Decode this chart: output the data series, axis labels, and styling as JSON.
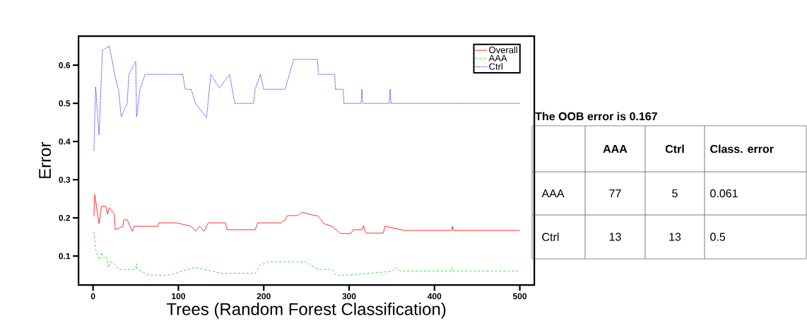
{
  "chart_data": [
    {
      "type": "line",
      "xlabel": "Trees (Random Forest Classification)",
      "ylabel": "Error",
      "xlim": [
        -17,
        517
      ],
      "ylim": [
        0.024,
        0.676
      ],
      "xticks": [
        0,
        100,
        200,
        300,
        400,
        500
      ],
      "yticks": [
        0.1,
        0.2,
        0.3,
        0.4,
        0.5,
        0.6
      ],
      "legend": "top right",
      "series": [
        {
          "name": "Overall",
          "color": "#ff3030",
          "line_style": "solid",
          "x": [
            1,
            2,
            7,
            10,
            15,
            17,
            19,
            25,
            26,
            35,
            36,
            40,
            46,
            48,
            76,
            77,
            98,
            115,
            120,
            125,
            130,
            135,
            138,
            155,
            157,
            190,
            193,
            220,
            225,
            228,
            240,
            245,
            260,
            263,
            267,
            270,
            280,
            290,
            302,
            305,
            315,
            317,
            318,
            320,
            340,
            342,
            365,
            420,
            421,
            422,
            500
          ],
          "values": [
            0.204,
            0.261,
            0.185,
            0.23,
            0.23,
            0.21,
            0.227,
            0.21,
            0.169,
            0.178,
            0.195,
            0.195,
            0.165,
            0.178,
            0.178,
            0.187,
            0.187,
            0.178,
            0.165,
            0.178,
            0.165,
            0.187,
            0.187,
            0.187,
            0.169,
            0.169,
            0.187,
            0.187,
            0.195,
            0.206,
            0.206,
            0.215,
            0.206,
            0.206,
            0.195,
            0.185,
            0.178,
            0.159,
            0.159,
            0.169,
            0.169,
            0.18,
            0.169,
            0.16,
            0.16,
            0.178,
            0.167,
            0.167,
            0.178,
            0.167,
            0.167
          ]
        },
        {
          "name": "AAA",
          "color": "#30e030",
          "line_style": "dashed",
          "x": [
            1,
            3,
            5,
            8,
            10,
            12,
            15,
            18,
            20,
            25,
            30,
            50,
            51,
            52,
            65,
            90,
            110,
            120,
            150,
            190,
            195,
            205,
            250,
            255,
            265,
            280,
            285,
            300,
            350,
            355,
            360,
            420,
            421,
            422,
            500
          ],
          "values": [
            0.163,
            0.12,
            0.1,
            0.09,
            0.11,
            0.095,
            0.1,
            0.07,
            0.085,
            0.08,
            0.065,
            0.065,
            0.08,
            0.065,
            0.05,
            0.05,
            0.065,
            0.07,
            0.055,
            0.055,
            0.075,
            0.085,
            0.085,
            0.075,
            0.065,
            0.065,
            0.05,
            0.05,
            0.06,
            0.07,
            0.061,
            0.061,
            0.07,
            0.061,
            0.061
          ]
        },
        {
          "name": "Ctrl",
          "color": "#4848ff",
          "line_style": "dotted",
          "x": [
            1,
            3,
            7,
            11,
            19,
            22,
            26,
            30,
            33,
            40,
            42,
            50,
            51,
            55,
            61,
            105,
            108,
            115,
            120,
            133,
            138,
            148,
            160,
            166,
            188,
            190,
            196,
            200,
            203,
            225,
            230,
            235,
            263,
            264,
            283,
            284,
            293,
            294,
            314,
            315,
            316,
            347,
            348,
            349,
            500
          ],
          "values": [
            0.376,
            0.543,
            0.418,
            0.639,
            0.65,
            0.617,
            0.57,
            0.533,
            0.465,
            0.5,
            0.576,
            0.61,
            0.465,
            0.537,
            0.576,
            0.576,
            0.537,
            0.537,
            0.5,
            0.463,
            0.576,
            0.54,
            0.576,
            0.5,
            0.5,
            0.537,
            0.576,
            0.537,
            0.537,
            0.537,
            0.576,
            0.615,
            0.615,
            0.576,
            0.576,
            0.537,
            0.537,
            0.5,
            0.5,
            0.537,
            0.5,
            0.5,
            0.537,
            0.5,
            0.5
          ]
        }
      ]
    },
    {
      "type": "other",
      "title": "The OOB error is 0.167",
      "categories": [
        "AAA",
        "Ctrl",
        "Class. error"
      ],
      "y_categories": [
        "AAA",
        "Ctrl"
      ],
      "cell_labels": [
        [
          "77",
          "5",
          "0.061"
        ],
        [
          "13",
          "13",
          "0.5"
        ]
      ]
    }
  ]
}
